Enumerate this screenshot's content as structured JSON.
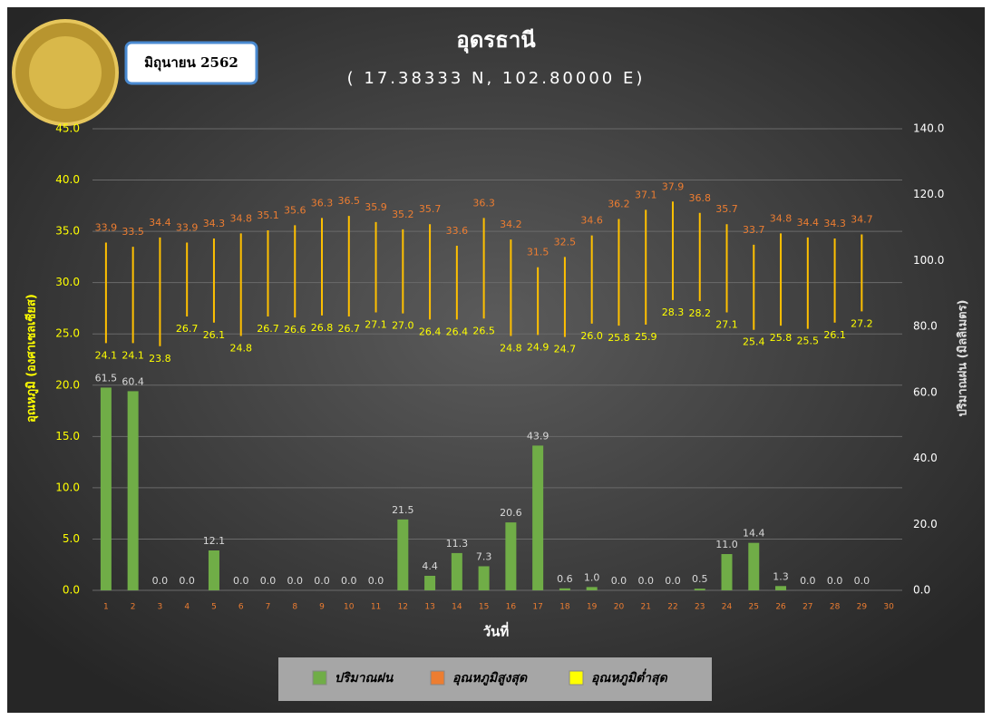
{
  "header": {
    "period": "มิถุนายน 2562"
  },
  "chart_data": {
    "type": "combo",
    "title": "อุดรธานี",
    "subtitle": "( 17.38333 N, 102.80000 E)",
    "xlabel": "วันที่",
    "ylabel": "อุณหภูมิ (องศาเซลเซียส)",
    "y2label": "ปริมาณฝน (มิลลิเมตร)",
    "categories": [
      "1",
      "2",
      "3",
      "4",
      "5",
      "6",
      "7",
      "8",
      "9",
      "10",
      "11",
      "12",
      "13",
      "14",
      "15",
      "16",
      "17",
      "18",
      "19",
      "20",
      "21",
      "22",
      "23",
      "24",
      "25",
      "26",
      "27",
      "28",
      "29",
      "30"
    ],
    "range_color": "#ffc000",
    "grid": true,
    "ylim": [
      0,
      45
    ],
    "yticks": [
      {
        "value": 0,
        "label": "0.0"
      },
      {
        "value": 5,
        "label": "5.0"
      },
      {
        "value": 10,
        "label": "10.0"
      },
      {
        "value": 15,
        "label": "15.0"
      },
      {
        "value": 20,
        "label": "20.0"
      },
      {
        "value": 25,
        "label": "25.0"
      },
      {
        "value": 30,
        "label": "30.0"
      },
      {
        "value": 35,
        "label": "35.0"
      },
      {
        "value": 40,
        "label": "40.0"
      },
      {
        "value": 45,
        "label": "45.0"
      }
    ],
    "y2lim": [
      0,
      140
    ],
    "y2ticks": [
      {
        "value": 0,
        "label": "0.0"
      },
      {
        "value": 20,
        "label": "20.0"
      },
      {
        "value": 40,
        "label": "40.0"
      },
      {
        "value": 60,
        "label": "60.0"
      },
      {
        "value": 80,
        "label": "80.0"
      },
      {
        "value": 100,
        "label": "100.0"
      },
      {
        "value": 120,
        "label": "120.0"
      },
      {
        "value": 140,
        "label": "140.0"
      }
    ],
    "series": [
      {
        "name": "ปริมาณฝน",
        "color": "#70ad47",
        "axis": "y2",
        "values": [
          61.5,
          60.4,
          0,
          0,
          12.1,
          0,
          0,
          0,
          0,
          0,
          0,
          21.5,
          4.4,
          11.3,
          7.3,
          20.6,
          43.9,
          0.6,
          1,
          0,
          0,
          0,
          0.5,
          11,
          14.4,
          1.3,
          0,
          0,
          0,
          null
        ],
        "value_labels": [
          "61.5",
          "60.4",
          "0.0",
          "0.0",
          "12.1",
          "0.0",
          "0.0",
          "0.0",
          "0.0",
          "0.0",
          "0.0",
          "21.5",
          "4.4",
          "11.3",
          "7.3",
          "20.6",
          "43.9",
          "0.6",
          "1.0",
          "0.0",
          "0.0",
          "0.0",
          "0.5",
          "11.0",
          "14.4",
          "1.3",
          "0.0",
          "0.0",
          "0.0",
          null
        ]
      },
      {
        "name": "อุณหภูมิสูงสุด",
        "color": "#ed7d31",
        "values": [
          33.9,
          33.5,
          34.4,
          33.9,
          34.3,
          34.8,
          35.1,
          35.6,
          36.3,
          36.5,
          35.9,
          35.2,
          35.7,
          33.6,
          36.3,
          34.2,
          31.5,
          32.5,
          34.6,
          36.2,
          37.1,
          37.9,
          36.8,
          35.7,
          33.7,
          34.8,
          34.4,
          34.3,
          34.7,
          null
        ]
      },
      {
        "name": "อุณหภูมิต่ำสุด",
        "color": "#ffff00",
        "values": [
          24.1,
          24.1,
          23.8,
          26.7,
          26.1,
          24.8,
          26.7,
          26.6,
          26.8,
          26.7,
          27.1,
          27,
          26.4,
          26.4,
          26.5,
          24.8,
          24.9,
          24.7,
          26,
          25.8,
          25.9,
          28.3,
          28.2,
          27.1,
          25.4,
          25.8,
          25.5,
          26.1,
          27.2,
          null
        ],
        "value_labels": [
          "24.1",
          "24.1",
          "23.8",
          "26.7",
          "26.1",
          "24.8",
          "26.7",
          "26.6",
          "26.8",
          "26.7",
          "27.1",
          "27.0",
          "26.4",
          "26.4",
          "26.5",
          "24.8",
          "24.9",
          "24.7",
          "26.0",
          "25.8",
          "25.9",
          "28.3",
          "28.2",
          "27.1",
          "25.4",
          "25.8",
          "25.5",
          "26.1",
          "27.2",
          null
        ]
      }
    ]
  }
}
